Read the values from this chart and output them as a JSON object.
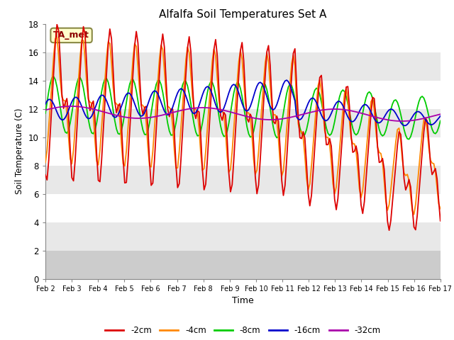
{
  "title": "Alfalfa Soil Temperatures Set A",
  "xlabel": "Time",
  "ylabel": "Soil Temperature (C)",
  "annotation_label": "TA_met",
  "ylim": [
    0,
    18
  ],
  "xlim": [
    0,
    15
  ],
  "xtick_labels": [
    "Feb 2",
    "Feb 3",
    "Feb 4",
    "Feb 5",
    "Feb 6",
    "Feb 7",
    "Feb 8",
    "Feb 9",
    "Feb 10",
    "Feb 11",
    "Feb 12",
    "Feb 13",
    "Feb 14",
    "Feb 15",
    "Feb 16",
    "Feb 17"
  ],
  "xtick_positions": [
    0,
    1,
    2,
    3,
    4,
    5,
    6,
    7,
    8,
    9,
    10,
    11,
    12,
    13,
    14,
    15
  ],
  "ytick_labels": [
    "0",
    "2",
    "4",
    "6",
    "8",
    "10",
    "12",
    "14",
    "16",
    "18"
  ],
  "ytick_positions": [
    0,
    2,
    4,
    6,
    8,
    10,
    12,
    14,
    16,
    18
  ],
  "line_colors": {
    "-2cm": "#dd0000",
    "-4cm": "#ff8800",
    "-8cm": "#00cc00",
    "-16cm": "#0000cc",
    "-32cm": "#aa00aa"
  },
  "legend_labels": [
    "-2cm",
    "-4cm",
    "-8cm",
    "-16cm",
    "-32cm"
  ],
  "band_colors": [
    "#ffffff",
    "#e8e8e8",
    "#ffffff",
    "#e8e8e8",
    "#ffffff",
    "#e8e8e8",
    "#ffffff",
    "#e8e8e8",
    "#cccccc"
  ],
  "band_ranges": [
    [
      16,
      18
    ],
    [
      14,
      16
    ],
    [
      12,
      14
    ],
    [
      10,
      12
    ],
    [
      8,
      10
    ],
    [
      6,
      8
    ],
    [
      4,
      6
    ],
    [
      2,
      4
    ],
    [
      0,
      2
    ]
  ]
}
